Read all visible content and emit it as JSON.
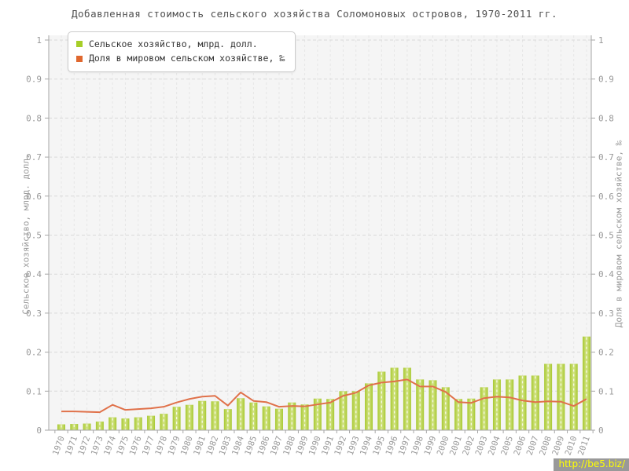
{
  "title": "Добавленная стоимость сельского хозяйства Соломоновых островов, 1970-2011 гг.",
  "legend": [
    {
      "label": "Сельское хозяйство, млрд. долл.",
      "color": "#a6ce27"
    },
    {
      "label": "Доля в мировом сельском хозяйстве, ‰",
      "color": "#e0682f"
    }
  ],
  "axes": {
    "left_title": "Сельское хозяйство, млрд. долл.",
    "right_title": "Доля в мировом сельском хозяйстве, ‰",
    "yticks": [
      "0",
      "0.1",
      "0.2",
      "0.3",
      "0.4",
      "0.5",
      "0.6",
      "0.7",
      "0.8",
      "0.9",
      "1"
    ]
  },
  "watermark": "http://be5.biz/",
  "colors": {
    "plot_background": "#f5f5f5",
    "bar_fill": "#b5d33b",
    "bar_edge": "#a8c931",
    "bar_center": "#d4e488",
    "line": "#e0714a",
    "axis": "#a6a6a6",
    "tick_text": "#999999",
    "grid_h": "#d9d9d9",
    "grid_v": "#e6e6e6"
  },
  "chart_data": {
    "type": "bar",
    "title": "Добавленная стоимость сельского хозяйства Соломоновых островов, 1970-2011 гг.",
    "xlabel": "",
    "ylabel_left": "Сельское хозяйство, млрд. долл.",
    "ylabel_right": "Доля в мировом сельском хозяйстве, ‰",
    "ylim": [
      0,
      1
    ],
    "ytick_step": 0.1,
    "grid": true,
    "legend_position": "top-left",
    "categories": [
      1970,
      1971,
      1972,
      1973,
      1974,
      1975,
      1976,
      1977,
      1978,
      1979,
      1980,
      1981,
      1982,
      1983,
      1984,
      1985,
      1986,
      1987,
      1988,
      1989,
      1990,
      1991,
      1992,
      1993,
      1994,
      1995,
      1996,
      1997,
      1998,
      1999,
      2000,
      2001,
      2002,
      2003,
      2004,
      2005,
      2006,
      2007,
      2008,
      2009,
      2010,
      2011
    ],
    "series": [
      {
        "name": "Сельское хозяйство, млрд. долл.",
        "type": "bar",
        "axis": "left",
        "color": "#b5d33b",
        "values": [
          0.015,
          0.016,
          0.017,
          0.022,
          0.033,
          0.03,
          0.033,
          0.037,
          0.042,
          0.06,
          0.065,
          0.075,
          0.074,
          0.054,
          0.082,
          0.071,
          0.061,
          0.055,
          0.071,
          0.066,
          0.081,
          0.08,
          0.1,
          0.1,
          0.12,
          0.15,
          0.16,
          0.16,
          0.13,
          0.128,
          0.11,
          0.08,
          0.081,
          0.11,
          0.13,
          0.13,
          0.14,
          0.14,
          0.17,
          0.17,
          0.17,
          0.24
        ]
      },
      {
        "name": "Доля в мировом сельском хозяйстве, ‰",
        "type": "line",
        "axis": "right",
        "color": "#e0714a",
        "values": [
          0.048,
          0.048,
          0.047,
          0.046,
          0.065,
          0.052,
          0.054,
          0.056,
          0.06,
          0.071,
          0.08,
          0.086,
          0.088,
          0.063,
          0.097,
          0.075,
          0.072,
          0.06,
          0.062,
          0.061,
          0.066,
          0.071,
          0.088,
          0.096,
          0.115,
          0.122,
          0.125,
          0.13,
          0.112,
          0.112,
          0.098,
          0.072,
          0.07,
          0.082,
          0.086,
          0.084,
          0.076,
          0.072,
          0.074,
          0.073,
          0.062,
          0.08
        ]
      }
    ]
  }
}
